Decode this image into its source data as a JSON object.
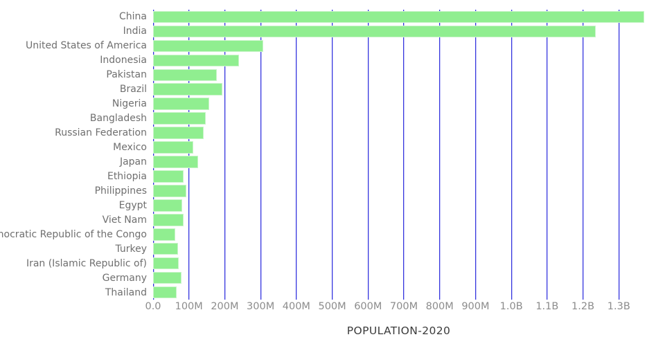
{
  "chart_data": {
    "type": "bar",
    "orientation": "horizontal",
    "title": "",
    "xlabel": "POPULATION-2020",
    "ylabel": "",
    "units": "persons (millions)",
    "grid": "vertical-on",
    "legend": "none",
    "categories": [
      "China",
      "India",
      "United States of America",
      "Indonesia",
      "Pakistan",
      "Brazil",
      "Nigeria",
      "Bangladesh",
      "Russian Federation",
      "Mexico",
      "Japan",
      "Ethiopia",
      "Philippines",
      "Egypt",
      "Viet Nam",
      "Democratic Republic of the Congo",
      "Turkey",
      "Iran (Islamic Republic of)",
      "Germany",
      "Thailand"
    ],
    "values_millions": [
      1371,
      1236,
      308,
      240,
      177,
      193,
      157,
      146,
      142,
      112,
      126,
      86,
      92,
      82,
      86,
      62,
      70,
      72,
      80,
      65
    ],
    "xlim_millions": [
      0,
      1371
    ],
    "x_ticks": [
      {
        "label": "0.0",
        "value": 0
      },
      {
        "label": "100M",
        "value": 100
      },
      {
        "label": "200M",
        "value": 200
      },
      {
        "label": "300M",
        "value": 300
      },
      {
        "label": "400M",
        "value": 400
      },
      {
        "label": "500M",
        "value": 500
      },
      {
        "label": "600M",
        "value": 600
      },
      {
        "label": "700M",
        "value": 700
      },
      {
        "label": "800M",
        "value": 800
      },
      {
        "label": "900M",
        "value": 900
      },
      {
        "label": "1.0B",
        "value": 1000
      },
      {
        "label": "1.1B",
        "value": 1100
      },
      {
        "label": "1.2B",
        "value": 1200
      },
      {
        "label": "1.3B",
        "value": 1300
      }
    ],
    "colors": {
      "background": "#ffffff",
      "bar_fill": "#90ee90",
      "bar_edge": "#c9f4c9",
      "gridline": "#3434dd",
      "category_label": "#6f6f6f",
      "tick_label": "#8c8c8c",
      "axis_title": "#3b3b3b"
    }
  }
}
